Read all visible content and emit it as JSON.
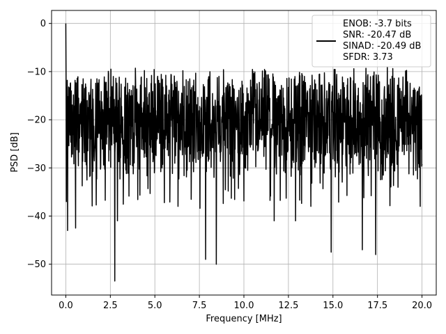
{
  "chart_data": {
    "type": "line",
    "title": "",
    "xlabel": "Frequency [MHz]",
    "ylabel": "PSD [dB]",
    "xlim": [
      -0.8,
      20.8
    ],
    "ylim": [
      -56.4,
      2.7
    ],
    "xticks": [
      0.0,
      2.5,
      5.0,
      7.5,
      10.0,
      12.5,
      15.0,
      17.5,
      20.0
    ],
    "xtick_labels": [
      "0.0",
      "2.5",
      "5.0",
      "7.5",
      "10.0",
      "12.5",
      "15.0",
      "17.5",
      "20.0"
    ],
    "yticks": [
      0,
      -10,
      -20,
      -30,
      -40,
      -50
    ],
    "ytick_labels": [
      "0",
      "−10",
      "−20",
      "−30",
      "−40",
      "−50"
    ],
    "grid": true,
    "legend": {
      "location": "top-right",
      "entries": [
        "ENOB: -3.7 bits",
        "SNR: -20.47 dB",
        "SINAD: -20.49 dB",
        "SFDR: 3.73"
      ]
    },
    "series": [
      {
        "color": "#000000",
        "noise_floor_db": -20.5,
        "x_range": [
          0.0,
          20.0
        ],
        "notable_points": {
          "x": [
            0.0,
            0.03,
            0.1,
            0.55,
            2.75,
            2.9,
            6.3,
            7.85,
            8.45,
            11.7,
            12.9,
            14.9,
            16.65,
            17.4,
            19.9
          ],
          "y": [
            0.0,
            -37.0,
            -43.0,
            -42.5,
            -53.5,
            -41.0,
            -38.0,
            -49.0,
            -50.0,
            -41.0,
            -41.0,
            -47.5,
            -47.0,
            -48.0,
            -38.0
          ]
        }
      }
    ]
  }
}
